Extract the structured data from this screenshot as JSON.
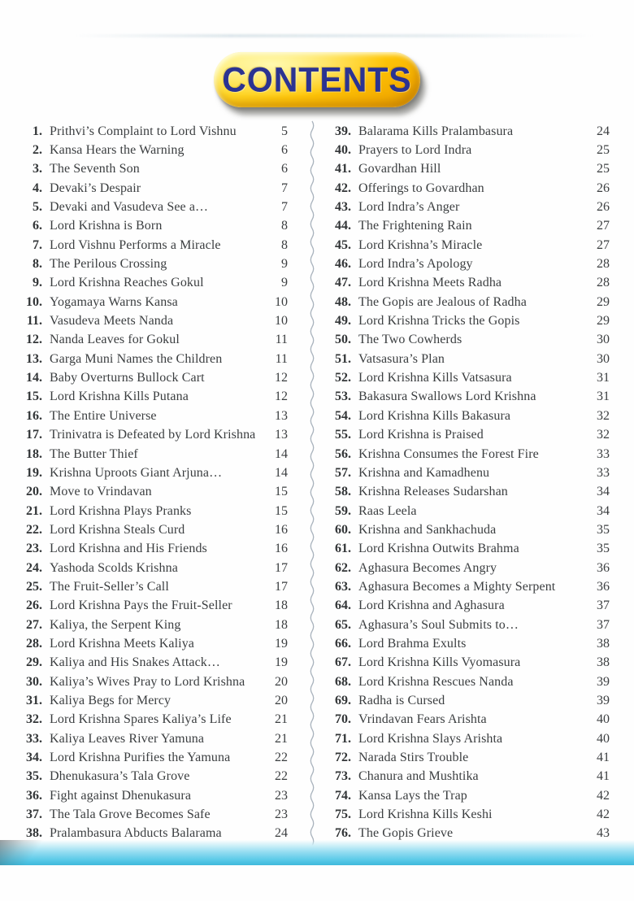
{
  "header": {
    "title": "CONTENTS"
  },
  "colors": {
    "banner_yellow": "#ffc709",
    "banner_text_blue": "#2b3391",
    "body_text": "#3b3e40",
    "divider_gray": "#a9b3bd",
    "bottom_band_cyan": "#47bfe0"
  },
  "toc": {
    "left": [
      {
        "num": "1.",
        "title": "Prithvi’s Complaint to Lord Vishnu",
        "page": "5"
      },
      {
        "num": "2.",
        "title": "Kansa Hears the Warning",
        "page": "6"
      },
      {
        "num": "3.",
        "title": "The Seventh Son",
        "page": "6"
      },
      {
        "num": "4.",
        "title": "Devaki’s Despair",
        "page": "7"
      },
      {
        "num": "5.",
        "title": "Devaki and Vasudeva See a…",
        "page": "7"
      },
      {
        "num": "6.",
        "title": "Lord Krishna is Born",
        "page": "8"
      },
      {
        "num": "7.",
        "title": "Lord Vishnu Performs a Miracle",
        "page": "8"
      },
      {
        "num": "8.",
        "title": "The Perilous Crossing",
        "page": "9"
      },
      {
        "num": "9.",
        "title": "Lord Krishna Reaches Gokul",
        "page": "9"
      },
      {
        "num": "10.",
        "title": "Yogamaya Warns Kansa",
        "page": "10"
      },
      {
        "num": "11.",
        "title": "Vasudeva Meets Nanda",
        "page": "10"
      },
      {
        "num": "12.",
        "title": "Nanda Leaves for Gokul",
        "page": "11"
      },
      {
        "num": "13.",
        "title": "Garga Muni Names the Children",
        "page": "11"
      },
      {
        "num": "14.",
        "title": "Baby Overturns Bullock Cart",
        "page": "12"
      },
      {
        "num": "15.",
        "title": "Lord Krishna Kills Putana",
        "page": "12"
      },
      {
        "num": "16.",
        "title": "The Entire Universe",
        "page": "13"
      },
      {
        "num": "17.",
        "title": "Trinivatra is Defeated by Lord Krishna",
        "page": "13"
      },
      {
        "num": "18.",
        "title": "The Butter Thief",
        "page": "14"
      },
      {
        "num": "19.",
        "title": "Krishna Uproots Giant Arjuna…",
        "page": "14"
      },
      {
        "num": "20.",
        "title": "Move to Vrindavan",
        "page": "15"
      },
      {
        "num": "21.",
        "title": "Lord Krishna Plays Pranks",
        "page": "15"
      },
      {
        "num": "22.",
        "title": "Lord Krishna Steals Curd",
        "page": "16"
      },
      {
        "num": "23.",
        "title": "Lord Krishna and His Friends",
        "page": "16"
      },
      {
        "num": "24.",
        "title": "Yashoda Scolds Krishna",
        "page": "17"
      },
      {
        "num": "25.",
        "title": "The Fruit-Seller’s Call",
        "page": "17"
      },
      {
        "num": "26.",
        "title": "Lord Krishna Pays the Fruit-Seller",
        "page": "18"
      },
      {
        "num": "27.",
        "title": "Kaliya, the Serpent King",
        "page": "18"
      },
      {
        "num": "28.",
        "title": "Lord Krishna Meets Kaliya",
        "page": "19"
      },
      {
        "num": "29.",
        "title": "Kaliya and His Snakes Attack…",
        "page": "19"
      },
      {
        "num": "30.",
        "title": "Kaliya’s Wives Pray to Lord Krishna",
        "page": "20"
      },
      {
        "num": "31.",
        "title": "Kaliya Begs for Mercy",
        "page": "20"
      },
      {
        "num": "32.",
        "title": "Lord Krishna Spares Kaliya’s Life",
        "page": "21"
      },
      {
        "num": "33.",
        "title": "Kaliya Leaves River Yamuna",
        "page": "21"
      },
      {
        "num": "34.",
        "title": "Lord Krishna Purifies the Yamuna",
        "page": "22"
      },
      {
        "num": "35.",
        "title": "Dhenukasura’s Tala Grove",
        "page": "22"
      },
      {
        "num": "36.",
        "title": "Fight against Dhenukasura",
        "page": "23"
      },
      {
        "num": "37.",
        "title": "The Tala Grove Becomes Safe",
        "page": "23"
      },
      {
        "num": "38.",
        "title": "Pralambasura Abducts Balarama",
        "page": "24"
      }
    ],
    "right": [
      {
        "num": "39.",
        "title": "Balarama Kills Pralambasura",
        "page": "24"
      },
      {
        "num": "40.",
        "title": "Prayers to Lord Indra",
        "page": "25"
      },
      {
        "num": "41.",
        "title": "Govardhan Hill",
        "page": "25"
      },
      {
        "num": "42.",
        "title": "Offerings to Govardhan",
        "page": "26"
      },
      {
        "num": "43.",
        "title": "Lord Indra’s Anger",
        "page": "26"
      },
      {
        "num": "44.",
        "title": "The Frightening Rain",
        "page": "27"
      },
      {
        "num": "45.",
        "title": "Lord Krishna’s Miracle",
        "page": "27"
      },
      {
        "num": "46.",
        "title": "Lord Indra’s Apology",
        "page": "28"
      },
      {
        "num": "47.",
        "title": "Lord Krishna Meets Radha",
        "page": "28"
      },
      {
        "num": "48.",
        "title": "The Gopis are Jealous of Radha",
        "page": "29"
      },
      {
        "num": "49.",
        "title": "Lord Krishna Tricks the Gopis",
        "page": "29"
      },
      {
        "num": "50.",
        "title": "The Two Cowherds",
        "page": "30"
      },
      {
        "num": "51.",
        "title": "Vatsasura’s Plan",
        "page": "30"
      },
      {
        "num": "52.",
        "title": "Lord Krishna Kills Vatsasura",
        "page": "31"
      },
      {
        "num": "53.",
        "title": "Bakasura Swallows Lord Krishna",
        "page": "31"
      },
      {
        "num": "54.",
        "title": "Lord Krishna Kills Bakasura",
        "page": "32"
      },
      {
        "num": "55.",
        "title": "Lord Krishna is Praised",
        "page": "32"
      },
      {
        "num": "56.",
        "title": "Krishna Consumes the Forest Fire",
        "page": "33"
      },
      {
        "num": "57.",
        "title": "Krishna and Kamadhenu",
        "page": "33"
      },
      {
        "num": "58.",
        "title": "Krishna Releases Sudarshan",
        "page": "34"
      },
      {
        "num": "59.",
        "title": "Raas Leela",
        "page": "34"
      },
      {
        "num": "60.",
        "title": "Krishna and Sankhachuda",
        "page": "35"
      },
      {
        "num": "61.",
        "title": "Lord Krishna Outwits Brahma",
        "page": "35"
      },
      {
        "num": "62.",
        "title": "Aghasura Becomes Angry",
        "page": "36"
      },
      {
        "num": "63.",
        "title": "Aghasura Becomes a Mighty Serpent",
        "page": "36"
      },
      {
        "num": "64.",
        "title": "Lord Krishna and Aghasura",
        "page": "37"
      },
      {
        "num": "65.",
        "title": "Aghasura’s Soul Submits to…",
        "page": "37"
      },
      {
        "num": "66.",
        "title": "Lord Brahma Exults",
        "page": "38"
      },
      {
        "num": "67.",
        "title": "Lord Krishna Kills Vyomasura",
        "page": "38"
      },
      {
        "num": "68.",
        "title": "Lord Krishna Rescues Nanda",
        "page": "39"
      },
      {
        "num": "69.",
        "title": "Radha is Cursed",
        "page": "39"
      },
      {
        "num": "70.",
        "title": "Vrindavan Fears Arishta",
        "page": "40"
      },
      {
        "num": "71.",
        "title": "Lord Krishna Slays Arishta",
        "page": "40"
      },
      {
        "num": "72.",
        "title": "Narada Stirs Trouble",
        "page": "41"
      },
      {
        "num": "73.",
        "title": "Chanura and Mushtika",
        "page": "41"
      },
      {
        "num": "74.",
        "title": "Kansa Lays the Trap",
        "page": "42"
      },
      {
        "num": "75.",
        "title": "Lord Krishna Kills Keshi",
        "page": "42"
      },
      {
        "num": "76.",
        "title": "The Gopis Grieve",
        "page": "43"
      }
    ]
  }
}
